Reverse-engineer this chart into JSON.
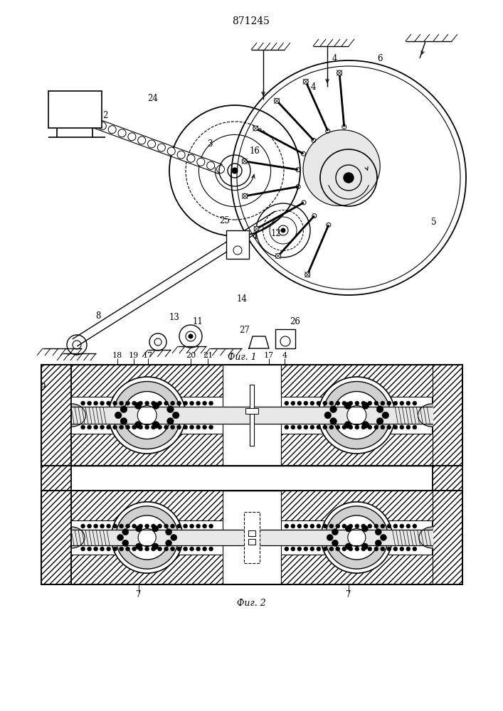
{
  "title": "871245",
  "fig1_label": "Фиг. 1",
  "fig2_label": "Фиг. 2",
  "bg_color": "#ffffff",
  "line_color": "#000000",
  "title_fontsize": 10,
  "label_fontsize": 8
}
